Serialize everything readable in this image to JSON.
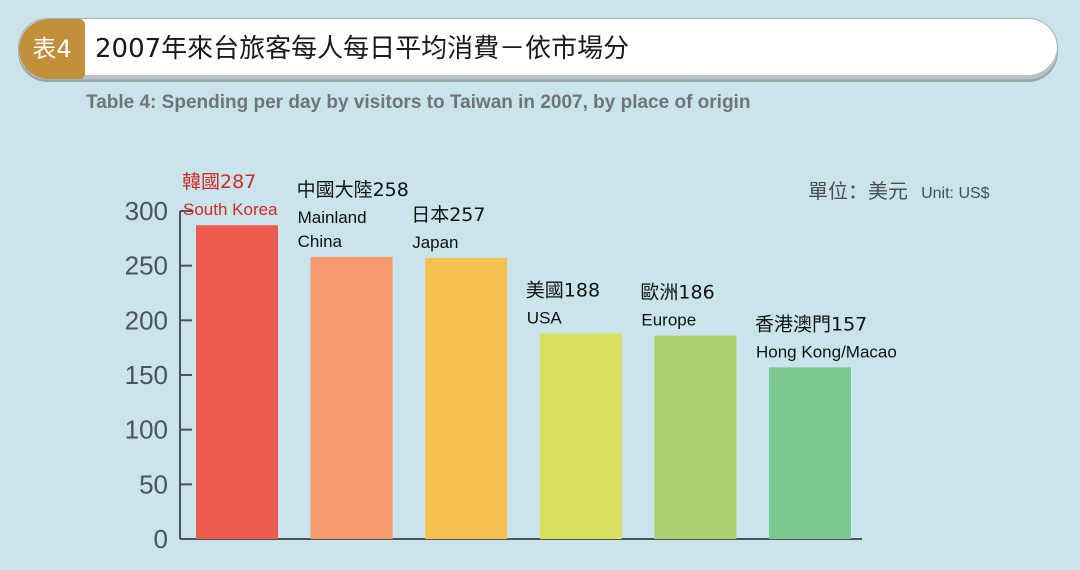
{
  "title": {
    "badge": "表4",
    "text": "2007年來台旅客每人每日平均消費－依市場分"
  },
  "subtitle": "Table 4: Spending per day by visitors to Taiwan in 2007, by place of origin",
  "unit": {
    "zh": "單位：美元",
    "en": "Unit: US$"
  },
  "chart_data": {
    "type": "bar",
    "categories": [
      "韓國 South Korea",
      "中國大陸 Mainland China",
      "日本 Japan",
      "美國 USA",
      "歐洲 Europe",
      "香港澳門 Hong Kong/Macao"
    ],
    "values": [
      287,
      258,
      257,
      188,
      186,
      157
    ],
    "bar_labels": [
      {
        "zh": "韓國287",
        "en": [
          "South Korea"
        ]
      },
      {
        "zh": "中國大陸258",
        "en": [
          "Mainland",
          "China"
        ]
      },
      {
        "zh": "日本257",
        "en": [
          "Japan"
        ]
      },
      {
        "zh": "美國188",
        "en": [
          "USA"
        ]
      },
      {
        "zh": "歐洲186",
        "en": [
          "Europe"
        ]
      },
      {
        "zh": "香港澳門157",
        "en": [
          "Hong Kong/Macao"
        ]
      }
    ],
    "ylim": [
      0,
      300
    ],
    "yticks": [
      0,
      50,
      100,
      150,
      200,
      250,
      300
    ],
    "colors": [
      "#ef5b4e",
      "#f59a6a",
      "#f5c150",
      "#d9e060",
      "#a9d06f",
      "#7cc98f"
    ],
    "label_colors": [
      "#d02a2a",
      "#111111",
      "#111111",
      "#111111",
      "#111111",
      "#111111"
    ],
    "axis_color": "#4d5356",
    "grid": false
  }
}
